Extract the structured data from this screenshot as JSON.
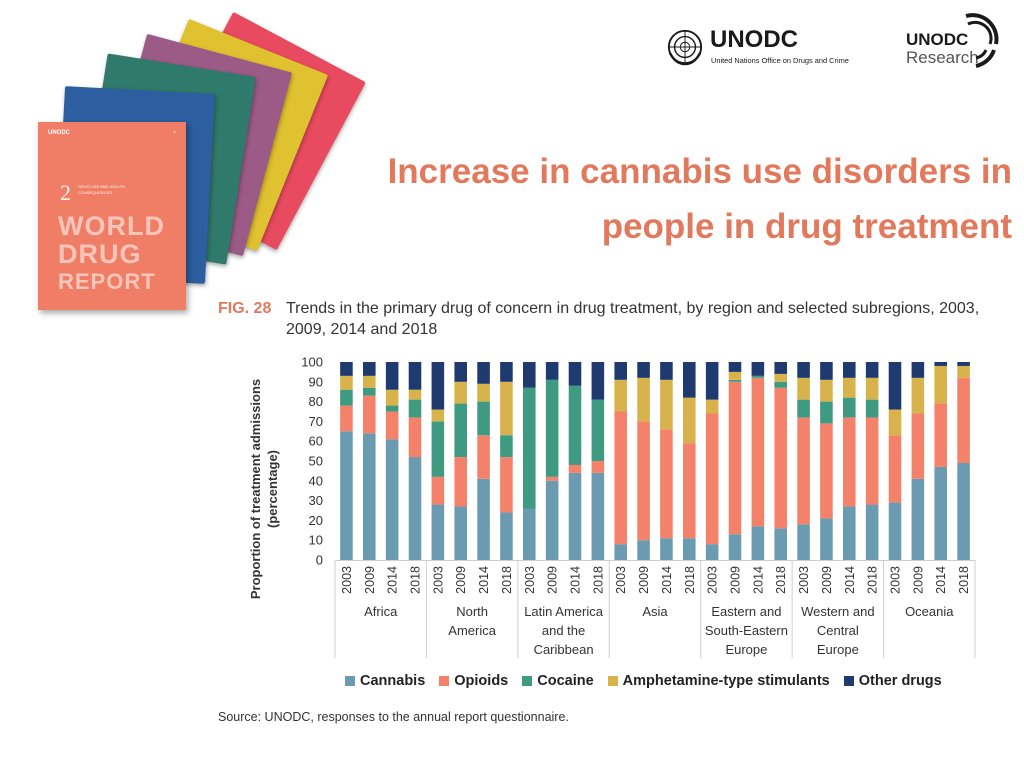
{
  "header": {
    "logo_name": "UNODC",
    "logo_subtitle": "United Nations Office on Drugs and Crime",
    "research_name": "UNODC",
    "research_sub": "Research"
  },
  "report_cover": {
    "org": "UNODC",
    "number": "2",
    "subtitle": "DRUG USE AND HEALTH CONSEQUENCES",
    "title_line1": "WORLD",
    "title_line2": "DRUG",
    "title_line3": "REPORT"
  },
  "title": {
    "line1": "Increase in cannabis use disorders in",
    "line2": "people in drug treatment"
  },
  "figure": {
    "label": "FIG. 28",
    "caption": "Trends in the primary drug of concern in drug treatment, by region and selected subregions, 2003, 2009, 2014 and 2018"
  },
  "source": "Source: UNODC, responses to the annual report questionnaire.",
  "chart_data": {
    "type": "bar",
    "stacked": true,
    "ylabel_line1": "Proportion of treatment admissions",
    "ylabel_line2": "(percentage)",
    "ylim": [
      0,
      100
    ],
    "yticks": [
      0,
      10,
      20,
      30,
      40,
      50,
      60,
      70,
      80,
      90,
      100
    ],
    "grid": false,
    "legend_position": "bottom",
    "groups": [
      {
        "label": [
          "Africa"
        ],
        "years": [
          "2003",
          "2009",
          "2014",
          "2018"
        ]
      },
      {
        "label": [
          "North",
          "America"
        ],
        "years": [
          "2003",
          "2009",
          "2014",
          "2018"
        ]
      },
      {
        "label": [
          "Latin America",
          "and the",
          "Caribbean"
        ],
        "years": [
          "2003",
          "2009",
          "2014",
          "2018"
        ]
      },
      {
        "label": [
          "Asia"
        ],
        "years": [
          "2003",
          "2009",
          "2014",
          "2018"
        ]
      },
      {
        "label": [
          "Eastern and",
          "South-Eastern",
          "Europe"
        ],
        "years": [
          "2003",
          "2009",
          "2014",
          "2018"
        ]
      },
      {
        "label": [
          "Western and",
          "Central",
          "Europe"
        ],
        "years": [
          "2003",
          "2009",
          "2014",
          "2018"
        ]
      },
      {
        "label": [
          "Oceania"
        ],
        "years": [
          "2003",
          "2009",
          "2014",
          "2018"
        ]
      }
    ],
    "series": [
      {
        "name": "Cannabis",
        "color": "#6b9bb0",
        "values": [
          65,
          64,
          61,
          52,
          28,
          27,
          41,
          24,
          26,
          40,
          44,
          44,
          8,
          10,
          11,
          11,
          8,
          13,
          17,
          16,
          18,
          21,
          27,
          28,
          29,
          41,
          47,
          49
        ]
      },
      {
        "name": "Opioids",
        "color": "#f4826a",
        "values": [
          13,
          19,
          14,
          20,
          14,
          25,
          22,
          28,
          0,
          2,
          4,
          6,
          67,
          60,
          55,
          48,
          66,
          77,
          75,
          71,
          54,
          48,
          45,
          44,
          34,
          33,
          32,
          43
        ]
      },
      {
        "name": "Cocaine",
        "color": "#3e9a80",
        "values": [
          8,
          4,
          3,
          9,
          28,
          27,
          17,
          11,
          61,
          49,
          40,
          31,
          0,
          0,
          0,
          0,
          0,
          1,
          1,
          3,
          9,
          11,
          10,
          9,
          0,
          0,
          0,
          0
        ]
      },
      {
        "name": "Amphetamine-type stimulants",
        "color": "#d8b24a",
        "values": [
          7,
          6,
          8,
          5,
          6,
          11,
          9,
          27,
          0,
          0,
          0,
          0,
          16,
          22,
          25,
          23,
          7,
          4,
          0,
          4,
          11,
          11,
          10,
          11,
          13,
          18,
          19,
          6
        ]
      },
      {
        "name": "Other drugs",
        "color": "#1e3a6e",
        "values": [
          7,
          7,
          14,
          14,
          24,
          10,
          11,
          10,
          13,
          9,
          12,
          19,
          9,
          8,
          9,
          18,
          19,
          5,
          7,
          6,
          8,
          9,
          8,
          8,
          24,
          8,
          2,
          2
        ]
      }
    ]
  }
}
